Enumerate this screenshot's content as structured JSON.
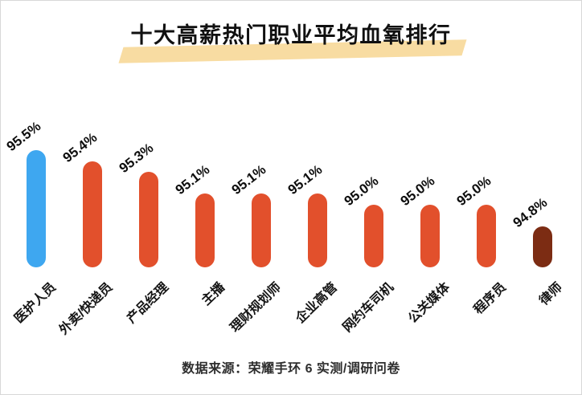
{
  "title": "十大高薪热门职业平均血氧排行",
  "source": "数据来源：荣耀手环 6 实测/调研问卷",
  "colors": {
    "title_highlight": "#F8DCA2",
    "bar_highlight_first": "#3EA7F0",
    "bar_default": "#E2502C",
    "bar_lowest": "#7C2C13",
    "text": "#101010"
  },
  "chart_data": {
    "type": "bar",
    "title": "十大高薪热门职业平均血氧排行",
    "categories": [
      "医护人员",
      "外卖/快递员",
      "产品经理",
      "主播",
      "理财规划师",
      "企业高管",
      "网约车司机",
      "公关媒体",
      "程序员",
      "律师"
    ],
    "values": [
      95.5,
      95.4,
      95.3,
      95.1,
      95.1,
      95.1,
      95.0,
      95.0,
      95.0,
      94.8
    ],
    "value_labels": [
      "95.5%",
      "95.4%",
      "95.3%",
      "95.1%",
      "95.1%",
      "95.1%",
      "95.0%",
      "95.0%",
      "95.0%",
      "94.8%"
    ],
    "bar_colors": [
      "#3EA7F0",
      "#E2502C",
      "#E2502C",
      "#E2502C",
      "#E2502C",
      "#E2502C",
      "#E2502C",
      "#E2502C",
      "#E2502C",
      "#7C2C13"
    ],
    "xlabel": "",
    "ylabel": "",
    "unit": "%",
    "ylim": [
      94.4,
      95.6
    ],
    "grid": false,
    "legend": "none",
    "orientation": "vertical",
    "bar_style": "rounded-pill",
    "value_label_rotation_deg": -38,
    "category_label_rotation_deg": -45
  }
}
